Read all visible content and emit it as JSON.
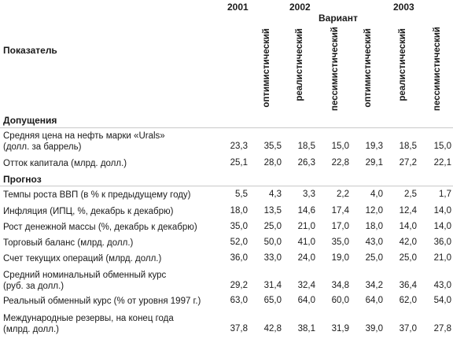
{
  "header": {
    "indicator_label": "Показатель",
    "variant_label": "Вариант",
    "years": [
      "2001",
      "2002",
      "2003"
    ],
    "scenarios": [
      "оптимистический",
      "реалистический",
      "пессимистический",
      "оптимистический",
      "реалистический",
      "пессимистический"
    ]
  },
  "sections": {
    "assumptions": "Допущения",
    "forecast": "Прогноз"
  },
  "rows": [
    {
      "label": "Средняя цена на нефть марки «Urals»",
      "label2": "(долл. за баррель)",
      "values": [
        "23,3",
        "35,5",
        "18,5",
        "15,0",
        "19,3",
        "18,5",
        "15,0"
      ]
    },
    {
      "label": "Отток капитала (млрд. долл.)",
      "values": [
        "25,1",
        "28,0",
        "26,3",
        "22,8",
        "29,1",
        "27,2",
        "22,1"
      ]
    },
    {
      "label": "Темпы роста ВВП (в % к предыдущему году)",
      "values": [
        "5,5",
        "4,3",
        "3,3",
        "2,2",
        "4,0",
        "2,5",
        "1,7"
      ]
    },
    {
      "label": "Инфляция (ИПЦ, %, декабрь к декабрю)",
      "values": [
        "18,0",
        "13,5",
        "14,6",
        "17,4",
        "12,0",
        "12,4",
        "14,0"
      ]
    },
    {
      "label": "Рост денежной массы (%, декабрь к декабрю)",
      "values": [
        "35,0",
        "25,0",
        "21,0",
        "17,0",
        "18,0",
        "14,0",
        "14,0"
      ]
    },
    {
      "label": "Торговый баланс (млрд. долл.)",
      "values": [
        "52,0",
        "50,0",
        "41,0",
        "35,0",
        "43,0",
        "42,0",
        "36,0"
      ]
    },
    {
      "label": "Счет текущих операций (млрд. долл.)",
      "values": [
        "36,0",
        "33,0",
        "24,0",
        "19,0",
        "25,0",
        "25,0",
        "21,0"
      ]
    },
    {
      "label": "Средний номинальный обменный курс",
      "label2": "(руб. за долл.)",
      "values": [
        "29,2",
        "31,4",
        "32,4",
        "34,8",
        "34,2",
        "36,4",
        "43,0"
      ]
    },
    {
      "label": "Реальный обменный курс (% от уровня 1997 г.)",
      "values": [
        "63,0",
        "65,0",
        "64,0",
        "60,0",
        "64,0",
        "62,0",
        "54,0"
      ]
    },
    {
      "label": "Международные резервы, на конец года",
      "label2": "(млрд. долл.)",
      "values": [
        "37,8",
        "42,8",
        "38,1",
        "31,9",
        "39,0",
        "37,0",
        "27,8"
      ]
    }
  ]
}
